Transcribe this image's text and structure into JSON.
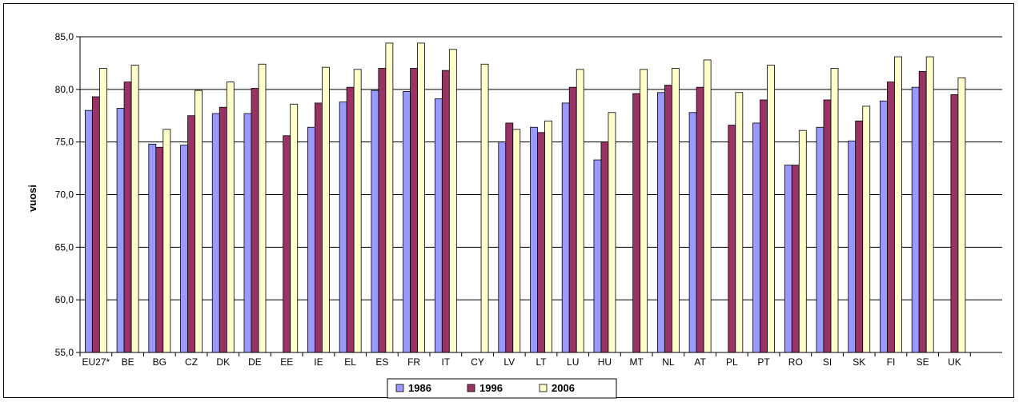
{
  "chart_data": {
    "type": "bar",
    "title": "",
    "xlabel": "",
    "ylabel": "vuosi",
    "ylim": [
      55,
      85
    ],
    "yticks": [
      "55,0",
      "60,0",
      "65,0",
      "70,0",
      "75,0",
      "80,0",
      "85,0"
    ],
    "grid": true,
    "legend_position": "bottom",
    "categories": [
      "EU27*",
      "BE",
      "BG",
      "CZ",
      "DK",
      "DE",
      "EE",
      "IE",
      "EL",
      "ES",
      "FR",
      "IT",
      "CY",
      "LV",
      "LT",
      "LU",
      "HU",
      "MT",
      "NL",
      "AT",
      "PL",
      "PT",
      "RO",
      "SI",
      "SK",
      "FI",
      "SE",
      "UK"
    ],
    "series": [
      {
        "name": "1986",
        "color": "#9999ff",
        "values": [
          78.0,
          78.2,
          74.8,
          74.7,
          77.7,
          77.7,
          null,
          76.4,
          78.8,
          79.9,
          79.8,
          79.1,
          null,
          75.0,
          76.4,
          78.7,
          73.3,
          null,
          79.7,
          77.8,
          null,
          76.8,
          72.8,
          76.4,
          75.1,
          78.9,
          80.2,
          null
        ]
      },
      {
        "name": "1996",
        "color": "#993366",
        "values": [
          79.3,
          80.7,
          74.5,
          77.5,
          78.3,
          80.1,
          75.6,
          78.7,
          80.2,
          82.0,
          82.0,
          81.8,
          null,
          76.8,
          75.9,
          80.2,
          75.0,
          79.6,
          80.4,
          80.2,
          76.6,
          79.0,
          72.8,
          79.0,
          77.0,
          80.7,
          81.7,
          79.5
        ]
      },
      {
        "name": "2006",
        "color": "#ffffcc",
        "values": [
          82.0,
          82.3,
          76.2,
          79.9,
          80.7,
          82.4,
          78.6,
          82.1,
          81.9,
          84.4,
          84.4,
          83.8,
          82.4,
          76.2,
          77.0,
          81.9,
          77.8,
          81.9,
          82.0,
          82.8,
          79.7,
          82.3,
          76.1,
          82.0,
          78.4,
          83.1,
          83.1,
          81.1
        ]
      }
    ]
  }
}
